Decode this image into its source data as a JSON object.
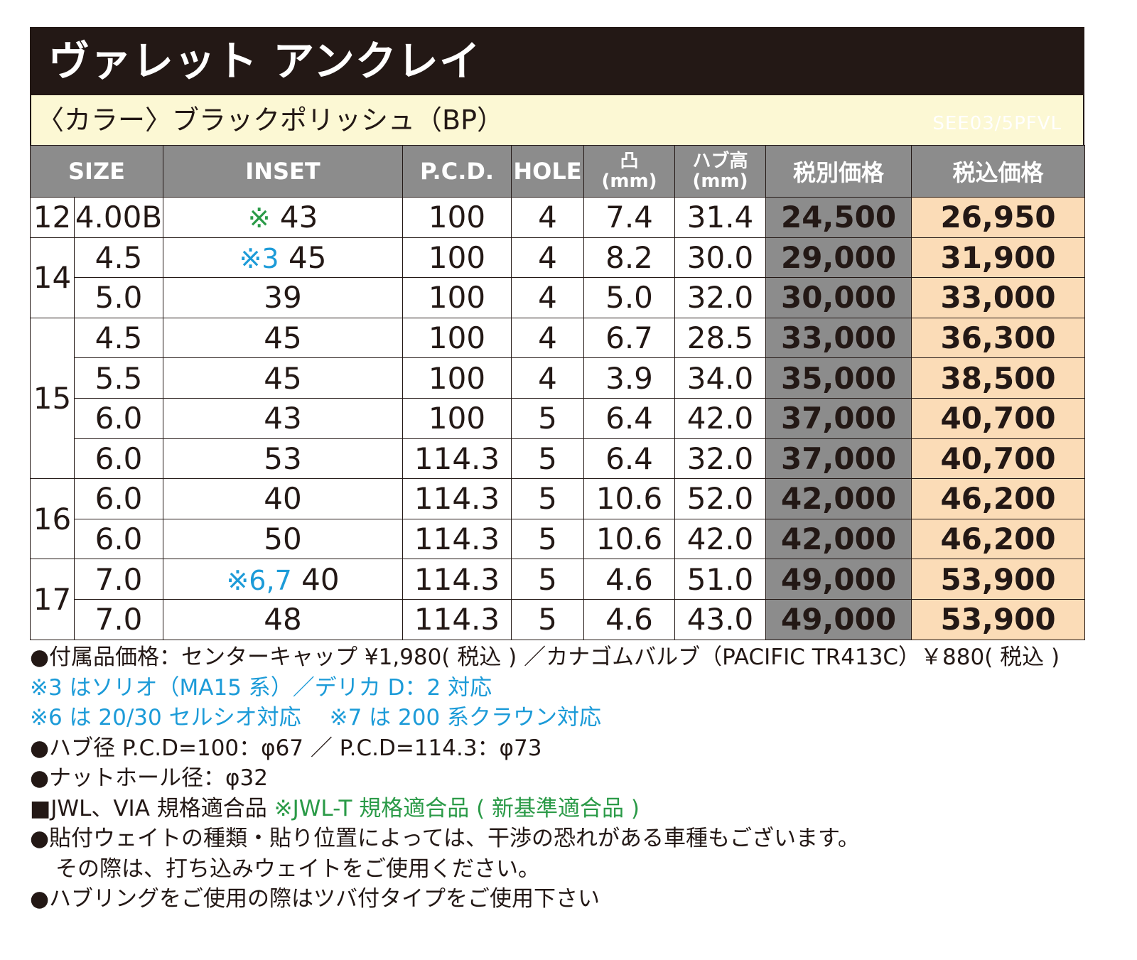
{
  "title": "ヴァレット アンクレイ",
  "color_label": "〈カラー〉ブラックポリッシュ（BP）",
  "model_code": "SEE03/5PFVL",
  "headers": {
    "size": "SIZE",
    "inset": "INSET",
    "pcd": "P.C.D.",
    "hole": "HOLE",
    "offset_sym": "凸",
    "offset_unit": "(mm)",
    "hub_height": "ハブ高",
    "hub_unit": "(mm)",
    "price_ex": "税別価格",
    "price_in": "税込価格"
  },
  "groups": [
    {
      "rim": "12",
      "rows": [
        {
          "width": "4.00B",
          "note": "※",
          "note_color": "green",
          "inset": "43",
          "pcd": "100",
          "hole": "4",
          "offset": "7.4",
          "hub": "31.4",
          "price_ex": "24,500",
          "price_in": "26,950"
        }
      ]
    },
    {
      "rim": "14",
      "rows": [
        {
          "width": "4.5",
          "note": "※3",
          "note_color": "blue",
          "inset": "45",
          "pcd": "100",
          "hole": "4",
          "offset": "8.2",
          "hub": "30.0",
          "price_ex": "29,000",
          "price_in": "31,900"
        },
        {
          "width": "5.0",
          "note": "",
          "note_color": "",
          "inset": "39",
          "pcd": "100",
          "hole": "4",
          "offset": "5.0",
          "hub": "32.0",
          "price_ex": "30,000",
          "price_in": "33,000"
        }
      ]
    },
    {
      "rim": "15",
      "rows": [
        {
          "width": "4.5",
          "note": "",
          "note_color": "",
          "inset": "45",
          "pcd": "100",
          "hole": "4",
          "offset": "6.7",
          "hub": "28.5",
          "price_ex": "33,000",
          "price_in": "36,300"
        },
        {
          "width": "5.5",
          "note": "",
          "note_color": "",
          "inset": "45",
          "pcd": "100",
          "hole": "4",
          "offset": "3.9",
          "hub": "34.0",
          "price_ex": "35,000",
          "price_in": "38,500"
        },
        {
          "width": "6.0",
          "note": "",
          "note_color": "",
          "inset": "43",
          "pcd": "100",
          "hole": "5",
          "offset": "6.4",
          "hub": "42.0",
          "price_ex": "37,000",
          "price_in": "40,700"
        },
        {
          "width": "6.0",
          "note": "",
          "note_color": "",
          "inset": "53",
          "pcd": "114.3",
          "hole": "5",
          "offset": "6.4",
          "hub": "32.0",
          "price_ex": "37,000",
          "price_in": "40,700"
        }
      ]
    },
    {
      "rim": "16",
      "rows": [
        {
          "width": "6.0",
          "note": "",
          "note_color": "",
          "inset": "40",
          "pcd": "114.3",
          "hole": "5",
          "offset": "10.6",
          "hub": "52.0",
          "price_ex": "42,000",
          "price_in": "46,200"
        },
        {
          "width": "6.0",
          "note": "",
          "note_color": "",
          "inset": "50",
          "pcd": "114.3",
          "hole": "5",
          "offset": "10.6",
          "hub": "42.0",
          "price_ex": "42,000",
          "price_in": "46,200"
        }
      ]
    },
    {
      "rim": "17",
      "rows": [
        {
          "width": "7.0",
          "note": "※6,7",
          "note_color": "blue",
          "inset": "40",
          "pcd": "114.3",
          "hole": "5",
          "offset": "4.6",
          "hub": "51.0",
          "price_ex": "49,000",
          "price_in": "53,900"
        },
        {
          "width": "7.0",
          "note": "",
          "note_color": "",
          "inset": "48",
          "pcd": "114.3",
          "hole": "5",
          "offset": "4.6",
          "hub": "43.0",
          "price_ex": "49,000",
          "price_in": "53,900"
        }
      ]
    }
  ],
  "notes": {
    "accessories": "●付属品価格：センターキャップ ¥1,980( 税込 ) ／カナゴムバルブ（PACIFIC TR413C）￥880( 税込 )",
    "note3": "※3 はソリオ（MA15 系）／デリカ D：2 対応",
    "note6": "※6 は 20/30 セルシオ対応",
    "note7": "※7 は 200 系クラウン対応",
    "hub_bore": "●ハブ径 P.C.D=100：φ67 ／ P.C.D=114.3：φ73",
    "nut_hole": "●ナットホール径：φ32",
    "standard": "■JWL、VIA 規格適合品",
    "standard_green": "※JWL-T 規格適合品 ( 新基準適合品 )",
    "weight1": "●貼付ウェイトの種類・貼り位置によっては、干渉の恐れがある車種もございます。",
    "weight2": "その際は、打ち込みウェイトをご使用ください。",
    "hubring": "●ハブリングをご使用の際はツバ付タイプをご使用下さい"
  },
  "colors": {
    "title_bg": "#231815",
    "color_bar_bg": "#fcf8d4",
    "header_bg": "#8c8c8c",
    "price_ex_bg": "#8c8c8c",
    "price_in_bg": "#fbdcb7",
    "note_green": "#2a9a47",
    "note_blue": "#1c9bd8"
  }
}
